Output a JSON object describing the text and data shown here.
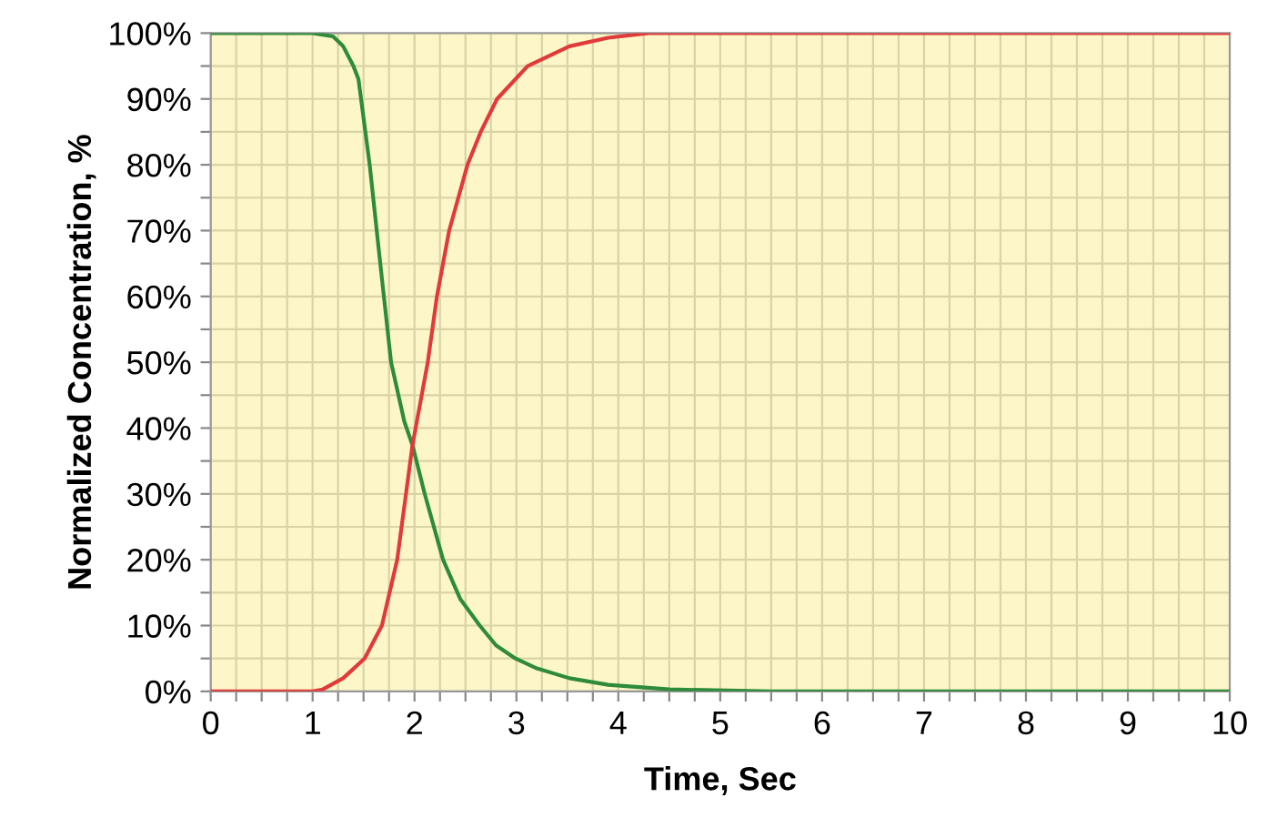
{
  "chart_data": {
    "type": "line",
    "xlabel": "Time, Sec",
    "ylabel": "Normalized Concentration, %",
    "xlim": [
      0,
      10
    ],
    "ylim": [
      0,
      100
    ],
    "xticks": [
      0,
      {
        "value": 0.25,
        "label": null
      },
      {
        "value": 0.5,
        "label": null
      },
      {
        "value": 0.75,
        "label": null
      },
      1,
      {
        "value": 1.25,
        "label": null
      },
      {
        "value": 1.5,
        "label": null
      },
      {
        "value": 1.75,
        "label": null
      },
      2,
      {
        "value": 2.25,
        "label": null
      },
      {
        "value": 2.5,
        "label": null
      },
      {
        "value": 2.75,
        "label": null
      },
      3,
      {
        "value": 3.25,
        "label": null
      },
      {
        "value": 3.5,
        "label": null
      },
      {
        "value": 3.75,
        "label": null
      },
      4,
      {
        "value": 4.25,
        "label": null
      },
      {
        "value": 4.5,
        "label": null
      },
      {
        "value": 4.75,
        "label": null
      },
      5,
      {
        "value": 5.25,
        "label": null
      },
      {
        "value": 5.5,
        "label": null
      },
      {
        "value": 5.75,
        "label": null
      },
      6,
      {
        "value": 6.25,
        "label": null
      },
      {
        "value": 6.5,
        "label": null
      },
      {
        "value": 6.75,
        "label": null
      },
      7,
      {
        "value": 7.25,
        "label": null
      },
      {
        "value": 7.5,
        "label": null
      },
      {
        "value": 7.75,
        "label": null
      },
      8,
      {
        "value": 8.25,
        "label": null
      },
      {
        "value": 8.5,
        "label": null
      },
      {
        "value": 8.75,
        "label": null
      },
      9,
      {
        "value": 9.25,
        "label": null
      },
      {
        "value": 9.5,
        "label": null
      },
      {
        "value": 9.75,
        "label": null
      },
      10
    ],
    "yticks": [
      {
        "value": 0,
        "label": "0%"
      },
      {
        "value": 5,
        "label": null
      },
      {
        "value": 10,
        "label": "10%"
      },
      {
        "value": 15,
        "label": null
      },
      {
        "value": 20,
        "label": "20%"
      },
      {
        "value": 25,
        "label": null
      },
      {
        "value": 30,
        "label": "30%"
      },
      {
        "value": 35,
        "label": null
      },
      {
        "value": 40,
        "label": "40%"
      },
      {
        "value": 45,
        "label": null
      },
      {
        "value": 50,
        "label": "50%"
      },
      {
        "value": 55,
        "label": null
      },
      {
        "value": 60,
        "label": "60%"
      },
      {
        "value": 65,
        "label": null
      },
      {
        "value": 70,
        "label": "70%"
      },
      {
        "value": 75,
        "label": null
      },
      {
        "value": 80,
        "label": "80%"
      },
      {
        "value": 85,
        "label": null
      },
      {
        "value": 90,
        "label": "90%"
      },
      {
        "value": 95,
        "label": null
      },
      {
        "value": 100,
        "label": "100%"
      }
    ],
    "grid": true,
    "marker": "none",
    "line_style": "solid",
    "series": [
      {
        "color": "#2e8b3a",
        "x": [
          0,
          1.0,
          1.2,
          1.3,
          1.4,
          1.45,
          1.56,
          1.65,
          1.77,
          1.9,
          1.98,
          2.1,
          2.28,
          2.45,
          2.64,
          2.8,
          2.99,
          3.2,
          3.52,
          3.9,
          4.5,
          5.5,
          7,
          10
        ],
        "values": [
          100,
          100,
          99.5,
          98,
          95,
          93,
          80,
          67,
          50,
          41,
          37.4,
          30,
          20,
          14,
          10,
          7,
          5,
          3.5,
          2,
          1,
          0.3,
          0,
          0,
          0
        ]
      },
      {
        "color": "#e03a3a",
        "x": [
          0,
          1.0,
          1.1,
          1.3,
          1.51,
          1.68,
          1.83,
          1.98,
          2.13,
          2.22,
          2.34,
          2.52,
          2.65,
          2.81,
          3.11,
          3.52,
          3.9,
          4.3,
          5,
          7,
          10
        ],
        "values": [
          0,
          0,
          0.3,
          2,
          5,
          10,
          20,
          37.4,
          50,
          60,
          70,
          80,
          85,
          90,
          95,
          98,
          99.3,
          100,
          100,
          100,
          100
        ]
      }
    ]
  }
}
